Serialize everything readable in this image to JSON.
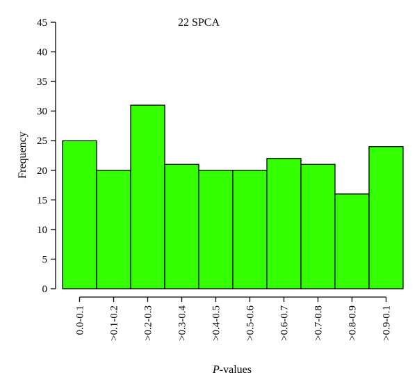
{
  "chart_data": {
    "type": "bar",
    "title": "22 SPCA",
    "xlabel_italic": "P",
    "xlabel_rest": "-values",
    "ylabel": "Frequency",
    "categories": [
      "0.0-0.1",
      ">0.1-0.2",
      ">0.2-0.3",
      ">0.3-0.4",
      ">0.4-0.5",
      ">0.5-0.6",
      ">0.6-0.7",
      ">0.7-0.8",
      ">0.8-0.9",
      ">0.9-0.1"
    ],
    "values": [
      25,
      20,
      31,
      21,
      20,
      20,
      22,
      21,
      16,
      24
    ],
    "ylim": [
      0,
      45
    ],
    "yticks": [
      0,
      5,
      10,
      15,
      20,
      25,
      30,
      35,
      40,
      45
    ],
    "grid": false,
    "bar_color": "#33ff00",
    "edge_color": "#000000"
  }
}
